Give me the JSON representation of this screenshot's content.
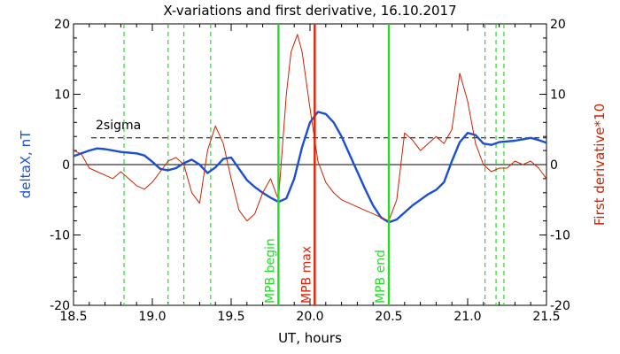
{
  "chart_data": {
    "type": "line",
    "title": "X-variations and first derivative, 16.10.2017",
    "xlabel": "UT, hours",
    "ylabel_left": "deltaX, nT",
    "ylabel_right": "First derivative*10",
    "xlim": [
      18.5,
      21.5
    ],
    "ylim": [
      -20,
      20
    ],
    "x_ticks": [
      "18.5",
      "19.0",
      "19.5",
      "20.0",
      "20.5",
      "21.0",
      "21.5"
    ],
    "y_ticks": [
      "-20",
      "-10",
      "0",
      "10",
      "20"
    ],
    "threshold_label": "2sigma",
    "threshold_value": 3.8,
    "zero_line": 0,
    "colors": {
      "deltaX": "#1a4fd6",
      "derivative": "#cc2200",
      "markers": "#22dd22",
      "max_marker": "#dd2200"
    },
    "series": [
      {
        "key": "deltaX",
        "x": [
          18.5,
          18.55,
          18.6,
          18.65,
          18.7,
          18.75,
          18.8,
          18.85,
          18.9,
          18.95,
          19.0,
          19.05,
          19.1,
          19.15,
          19.2,
          19.25,
          19.3,
          19.35,
          19.4,
          19.45,
          19.5,
          19.55,
          19.6,
          19.65,
          19.7,
          19.75,
          19.8,
          19.85,
          19.9,
          19.95,
          20.0,
          20.05,
          20.1,
          20.15,
          20.2,
          20.25,
          20.3,
          20.35,
          20.4,
          20.45,
          20.5,
          20.55,
          20.6,
          20.65,
          20.7,
          20.75,
          20.8,
          20.85,
          20.9,
          20.95,
          21.0,
          21.05,
          21.1,
          21.15,
          21.2,
          21.25,
          21.3,
          21.35,
          21.4,
          21.45,
          21.5
        ],
        "values": [
          1.2,
          1.6,
          2.0,
          2.3,
          2.2,
          2.0,
          1.8,
          1.7,
          1.6,
          1.3,
          0.4,
          -0.6,
          -0.8,
          -0.5,
          0.2,
          0.7,
          0.0,
          -1.2,
          -0.4,
          0.8,
          1.0,
          -0.6,
          -2.2,
          -3.2,
          -4.0,
          -4.7,
          -5.3,
          -4.8,
          -2.0,
          2.5,
          6.0,
          7.5,
          7.2,
          6.0,
          4.0,
          1.5,
          -1.0,
          -3.5,
          -5.8,
          -7.5,
          -8.2,
          -7.8,
          -6.8,
          -5.8,
          -5.0,
          -4.2,
          -3.6,
          -2.5,
          0.5,
          3.2,
          4.5,
          4.2,
          3.0,
          2.8,
          3.2,
          3.3,
          3.4,
          3.6,
          3.8,
          3.5,
          3.1
        ]
      },
      {
        "key": "derivative",
        "x": [
          18.5,
          18.55,
          18.6,
          18.65,
          18.7,
          18.75,
          18.8,
          18.85,
          18.9,
          18.95,
          19.0,
          19.05,
          19.1,
          19.15,
          19.2,
          19.25,
          19.3,
          19.35,
          19.4,
          19.45,
          19.5,
          19.55,
          19.6,
          19.65,
          19.7,
          19.75,
          19.8,
          19.85,
          19.88,
          19.92,
          19.95,
          20.0,
          20.05,
          20.1,
          20.15,
          20.2,
          20.25,
          20.3,
          20.35,
          20.4,
          20.45,
          20.5,
          20.55,
          20.6,
          20.65,
          20.7,
          20.75,
          20.8,
          20.85,
          20.9,
          20.95,
          21.0,
          21.05,
          21.1,
          21.15,
          21.2,
          21.25,
          21.3,
          21.35,
          21.4,
          21.45,
          21.5
        ],
        "values": [
          2.0,
          1.5,
          -0.5,
          -1.0,
          -1.5,
          -2.0,
          -1.0,
          -2.0,
          -3.0,
          -3.5,
          -2.5,
          -1.0,
          0.5,
          1.0,
          0.0,
          -4.0,
          -5.5,
          2.0,
          5.5,
          3.0,
          -2.0,
          -6.5,
          -8.0,
          -7.0,
          -4.0,
          -2.0,
          -5.0,
          10.0,
          16.0,
          18.5,
          16.0,
          8.0,
          0.5,
          -2.5,
          -4.0,
          -5.0,
          -5.5,
          -6.0,
          -6.5,
          -7.0,
          -7.5,
          -8.0,
          -5.0,
          4.5,
          3.5,
          2.0,
          3.0,
          4.0,
          3.0,
          5.0,
          13.0,
          9.0,
          3.0,
          0.0,
          -1.0,
          -0.5,
          -0.5,
          0.5,
          0.0,
          0.5,
          -0.5,
          -2.0
        ]
      }
    ],
    "dashed_markers": [
      18.82,
      19.1,
      19.2,
      19.37,
      21.11,
      21.18,
      21.23
    ],
    "event_markers": [
      {
        "x": 19.8,
        "label": "MPB begin",
        "color": "#22dd22"
      },
      {
        "x": 20.03,
        "label": "MPB max",
        "color": "#dd2200"
      },
      {
        "x": 20.5,
        "label": "MPB end",
        "color": "#22dd22"
      }
    ]
  }
}
